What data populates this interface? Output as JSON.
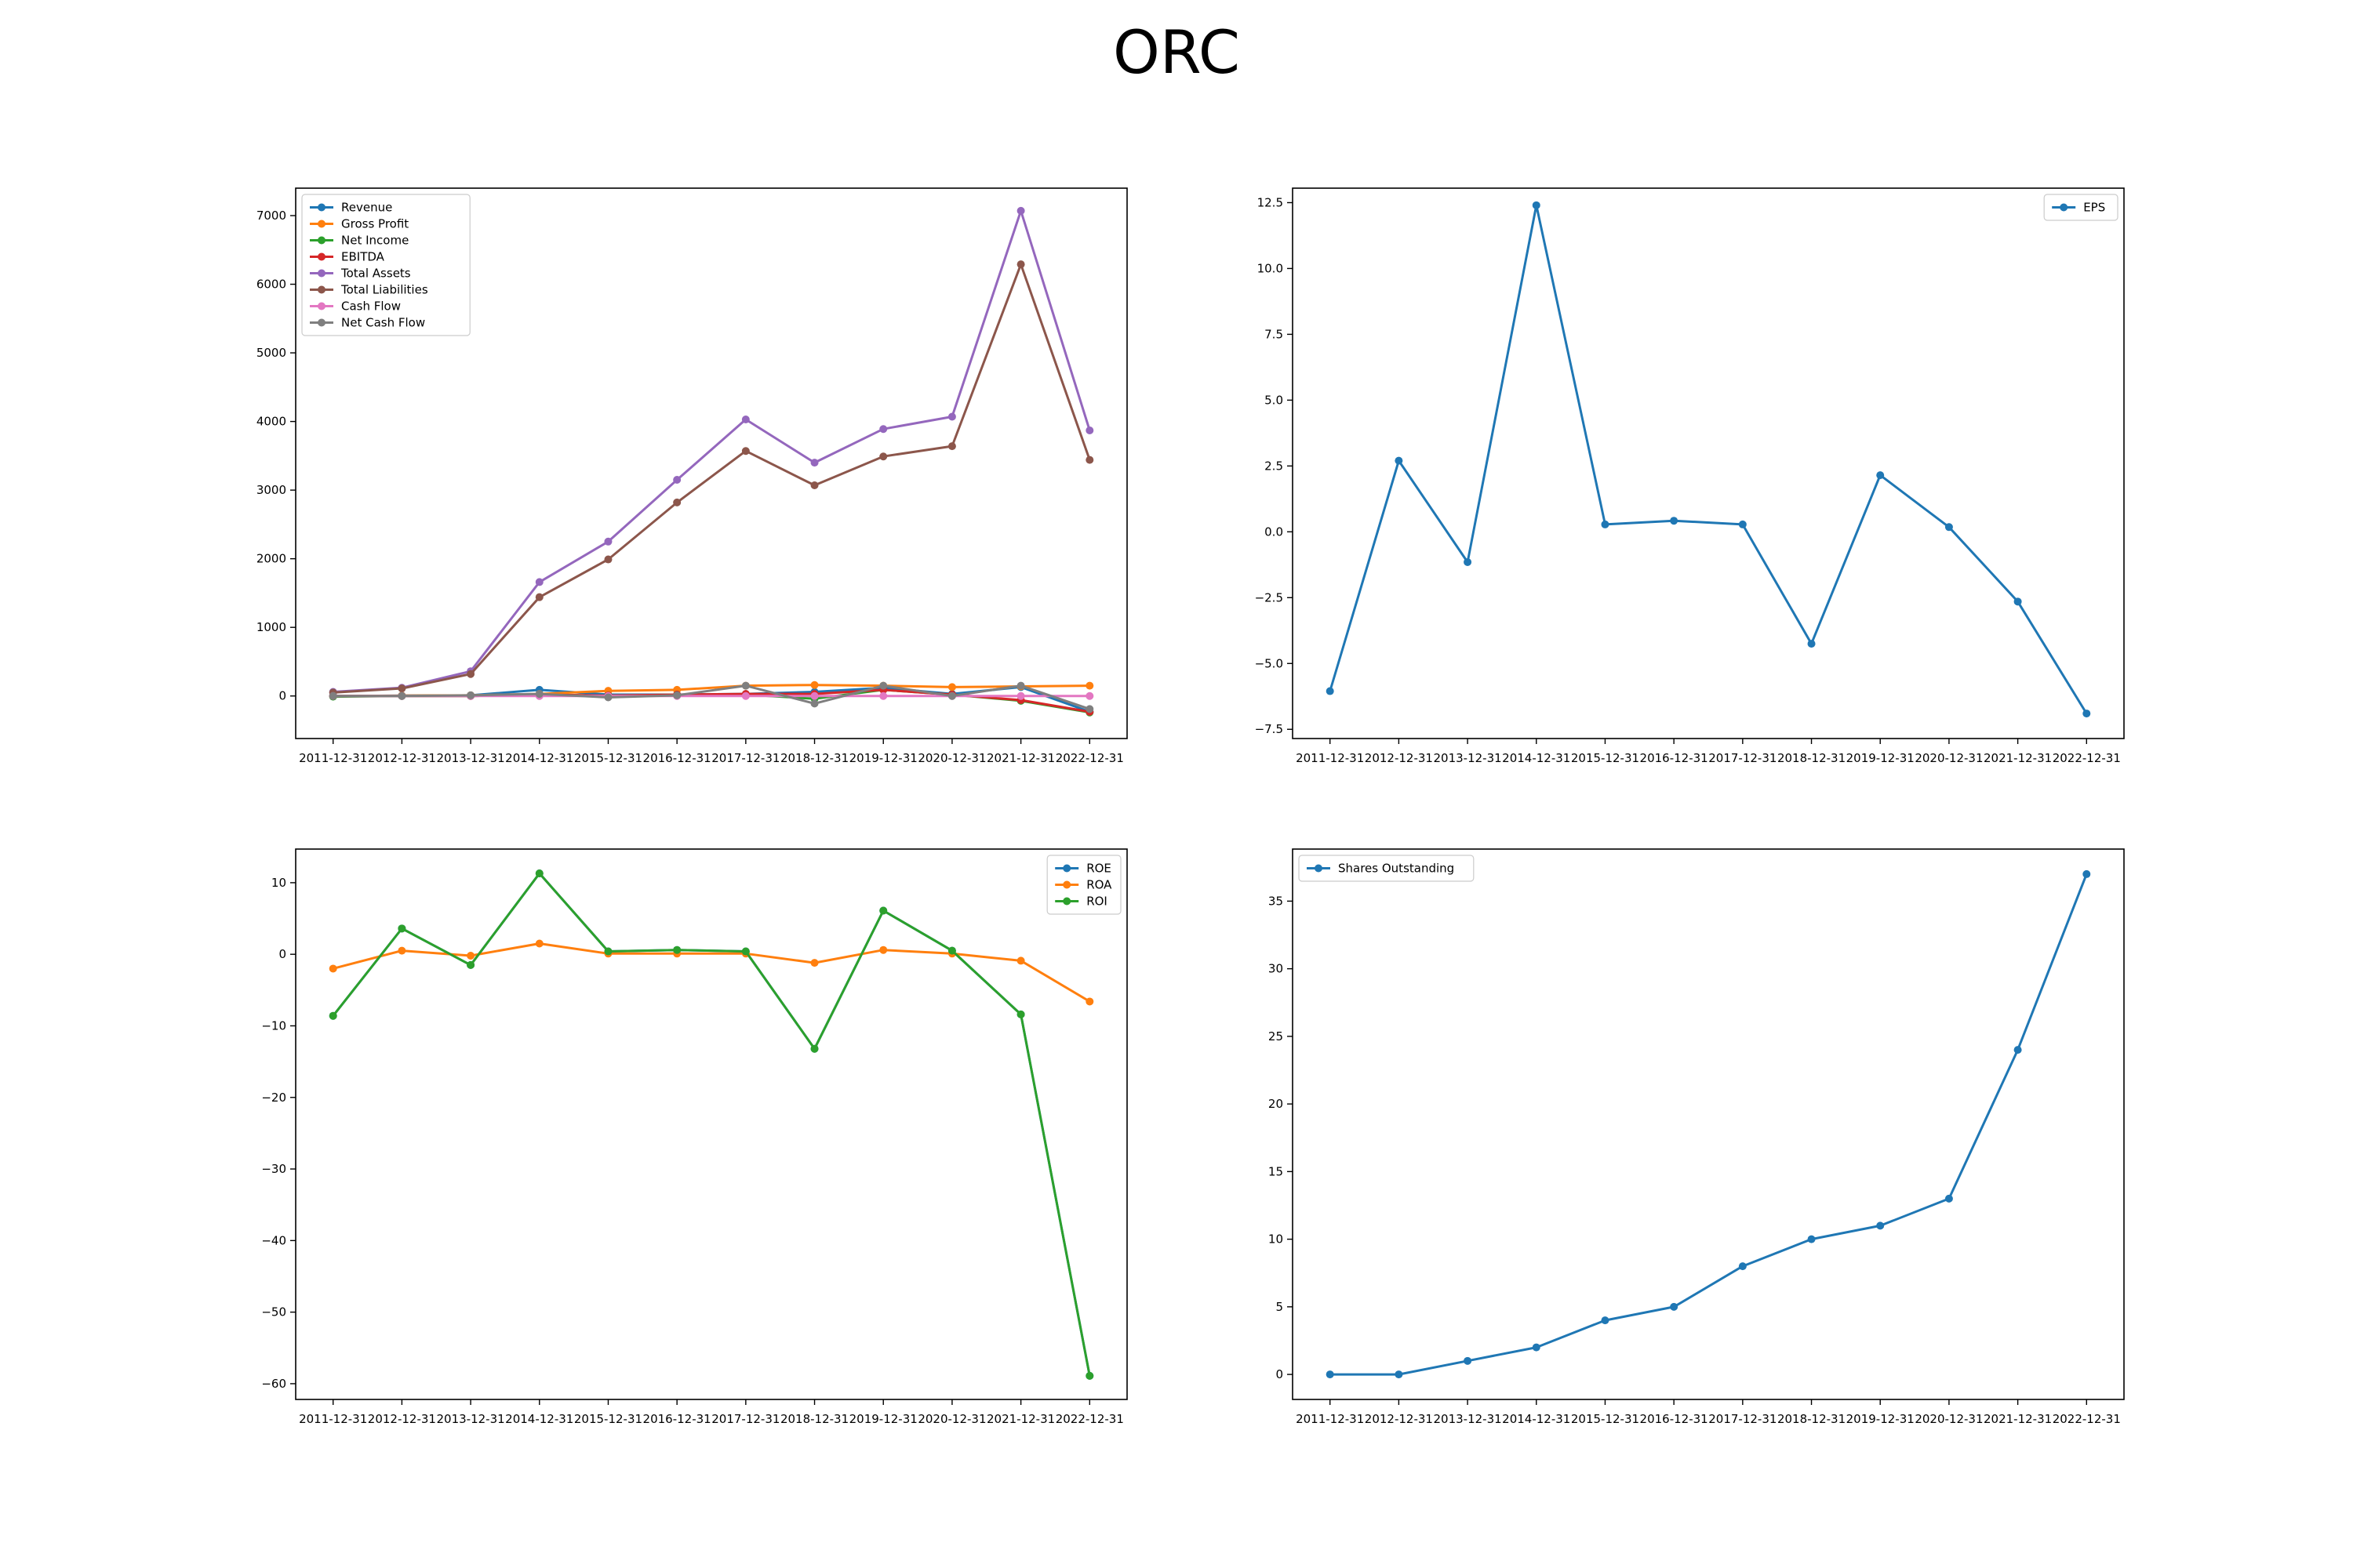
{
  "figure": {
    "title": "ORC"
  },
  "chart_data": [
    {
      "id": "financials",
      "type": "line",
      "x": [
        "2011-12-31",
        "2012-12-31",
        "2013-12-31",
        "2014-12-31",
        "2015-12-31",
        "2016-12-31",
        "2017-12-31",
        "2018-12-31",
        "2019-12-31",
        "2020-12-31",
        "2021-12-31",
        "2022-12-31"
      ],
      "ylim": [
        -620,
        7400
      ],
      "yticks": [
        0,
        1000,
        2000,
        3000,
        4000,
        5000,
        6000,
        7000
      ],
      "legend_position": "upper left",
      "series": [
        {
          "name": "Revenue",
          "color": "#1f77b4",
          "values": [
            0,
            5,
            10,
            90,
            20,
            20,
            30,
            60,
            120,
            30,
            130,
            -230
          ]
        },
        {
          "name": "Gross Profit",
          "color": "#ff7f0e",
          "values": [
            0,
            5,
            10,
            30,
            75,
            90,
            150,
            160,
            150,
            130,
            140,
            150
          ]
        },
        {
          "name": "Net Income",
          "color": "#2ca02c",
          "values": [
            -10,
            0,
            0,
            20,
            5,
            20,
            20,
            -40,
            90,
            20,
            -70,
            -240
          ]
        },
        {
          "name": "EBITDA",
          "color": "#d62728",
          "values": [
            0,
            0,
            0,
            20,
            5,
            20,
            30,
            30,
            90,
            20,
            -60,
            -230
          ]
        },
        {
          "name": "Total Assets",
          "color": "#9467bd",
          "values": [
            60,
            120,
            360,
            1660,
            2250,
            3150,
            4030,
            3400,
            3890,
            4070,
            7070,
            3870
          ]
        },
        {
          "name": "Total Liabilities",
          "color": "#8c564b",
          "values": [
            50,
            110,
            320,
            1440,
            1990,
            2820,
            3570,
            3070,
            3490,
            3640,
            6290,
            3440
          ]
        },
        {
          "name": "Cash Flow",
          "color": "#e377c2",
          "values": [
            0,
            0,
            0,
            0,
            0,
            0,
            0,
            0,
            0,
            0,
            0,
            0
          ]
        },
        {
          "name": "Net Cash Flow",
          "color": "#7f7f7f",
          "values": [
            0,
            0,
            10,
            30,
            -20,
            10,
            150,
            -110,
            150,
            0,
            150,
            -190
          ]
        }
      ]
    },
    {
      "id": "eps",
      "type": "line",
      "x": [
        "2011-12-31",
        "2012-12-31",
        "2013-12-31",
        "2014-12-31",
        "2015-12-31",
        "2016-12-31",
        "2017-12-31",
        "2018-12-31",
        "2019-12-31",
        "2020-12-31",
        "2021-12-31",
        "2022-12-31"
      ],
      "ylim": [
        -7.85,
        13.05
      ],
      "yticks": [
        -7.5,
        -5.0,
        -2.5,
        0.0,
        2.5,
        5.0,
        7.5,
        10.0,
        12.5
      ],
      "ytick_labels": [
        "−7.5",
        "−5.0",
        "−2.5",
        "0.0",
        "2.5",
        "5.0",
        "7.5",
        "10.0",
        "12.5"
      ],
      "legend_position": "upper right",
      "series": [
        {
          "name": "EPS",
          "color": "#1f77b4",
          "values": [
            -6.05,
            2.7,
            -1.15,
            12.4,
            0.28,
            0.42,
            0.28,
            -4.25,
            2.15,
            0.18,
            -2.65,
            -6.9
          ]
        }
      ]
    },
    {
      "id": "ratios",
      "type": "line",
      "x": [
        "2011-12-31",
        "2012-12-31",
        "2013-12-31",
        "2014-12-31",
        "2015-12-31",
        "2016-12-31",
        "2017-12-31",
        "2018-12-31",
        "2019-12-31",
        "2020-12-31",
        "2021-12-31",
        "2022-12-31"
      ],
      "ylim": [
        -62.2,
        14.7
      ],
      "yticks": [
        -60,
        -50,
        -40,
        -30,
        -20,
        -10,
        0,
        10
      ],
      "ytick_labels": [
        "−60",
        "−50",
        "−40",
        "−30",
        "−20",
        "−10",
        "0",
        "10"
      ],
      "legend_position": "upper right",
      "series": [
        {
          "name": "ROE",
          "color": "#1f77b4",
          "values": [
            -8.6,
            3.6,
            -1.5,
            11.3,
            0.4,
            0.6,
            0.4,
            -13.2,
            6.1,
            0.5,
            -8.4,
            -58.9
          ]
        },
        {
          "name": "ROA",
          "color": "#ff7f0e",
          "values": [
            -2.0,
            0.5,
            -0.2,
            1.5,
            0.1,
            0.1,
            0.1,
            -1.2,
            0.6,
            0.1,
            -0.9,
            -6.6
          ]
        },
        {
          "name": "ROI",
          "color": "#2ca02c",
          "values": [
            -8.6,
            3.6,
            -1.5,
            11.3,
            0.4,
            0.6,
            0.4,
            -13.2,
            6.1,
            0.5,
            -8.4,
            -58.9
          ]
        }
      ]
    },
    {
      "id": "shares",
      "type": "line",
      "x": [
        "2011-12-31",
        "2012-12-31",
        "2013-12-31",
        "2014-12-31",
        "2015-12-31",
        "2016-12-31",
        "2017-12-31",
        "2018-12-31",
        "2019-12-31",
        "2020-12-31",
        "2021-12-31",
        "2022-12-31"
      ],
      "ylim": [
        -1.85,
        38.85
      ],
      "yticks": [
        0,
        5,
        10,
        15,
        20,
        25,
        30,
        35
      ],
      "legend_position": "upper left",
      "series": [
        {
          "name": "Shares Outstanding",
          "color": "#1f77b4",
          "values": [
            0,
            0,
            1,
            2,
            4,
            5,
            8,
            10,
            11,
            13,
            24,
            37
          ]
        }
      ]
    }
  ]
}
